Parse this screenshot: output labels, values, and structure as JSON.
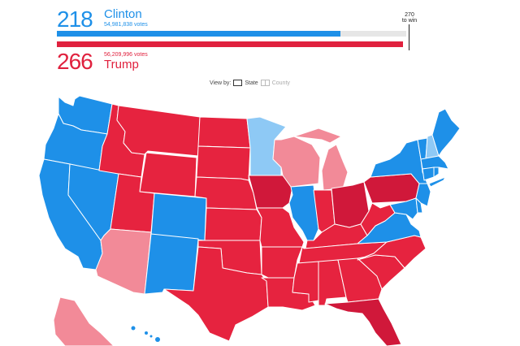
{
  "header": {
    "clinton": {
      "electoral_votes": "218",
      "name": "Clinton",
      "popular_votes": "54,981,838 votes",
      "bar_percent": 81.1,
      "color": "#1e90e8"
    },
    "trump": {
      "electoral_votes": "266",
      "name": "Trump",
      "popular_votes": "56,209,996 votes",
      "bar_percent": 99.0,
      "color": "#e0213e"
    },
    "threshold": {
      "line1": "270",
      "line2": "to win"
    }
  },
  "view_by": {
    "label": "View by:",
    "options": [
      {
        "label": "State",
        "selected": true
      },
      {
        "label": "County",
        "selected": false
      }
    ]
  },
  "legend_colors": {
    "clinton_won": "#1e90e8",
    "clinton_leading": "#8ec9f5",
    "trump_won": "#e6233f",
    "trump_leading": "#f28a98",
    "trump_flipped": "#d0183a"
  },
  "states": {
    "clinton_won": [
      "WA",
      "OR",
      "CA",
      "NV",
      "CO",
      "NM",
      "IL",
      "VA",
      "MD",
      "DE",
      "NJ",
      "NY",
      "CT",
      "RI",
      "MA",
      "VT",
      "ME",
      "HI",
      "DC"
    ],
    "clinton_leading": [
      "MN",
      "NH"
    ],
    "trump_won": [
      "ID",
      "MT",
      "WY",
      "UT",
      "ND",
      "SD",
      "NE",
      "KS",
      "OK",
      "TX",
      "MO",
      "AR",
      "LA",
      "MS",
      "AL",
      "GA",
      "SC",
      "NC",
      "TN",
      "KY",
      "IN",
      "WV",
      "IA",
      "OH",
      "PA",
      "FL"
    ],
    "trump_leading": [
      "AZ",
      "WI",
      "MI",
      "AK"
    ]
  }
}
